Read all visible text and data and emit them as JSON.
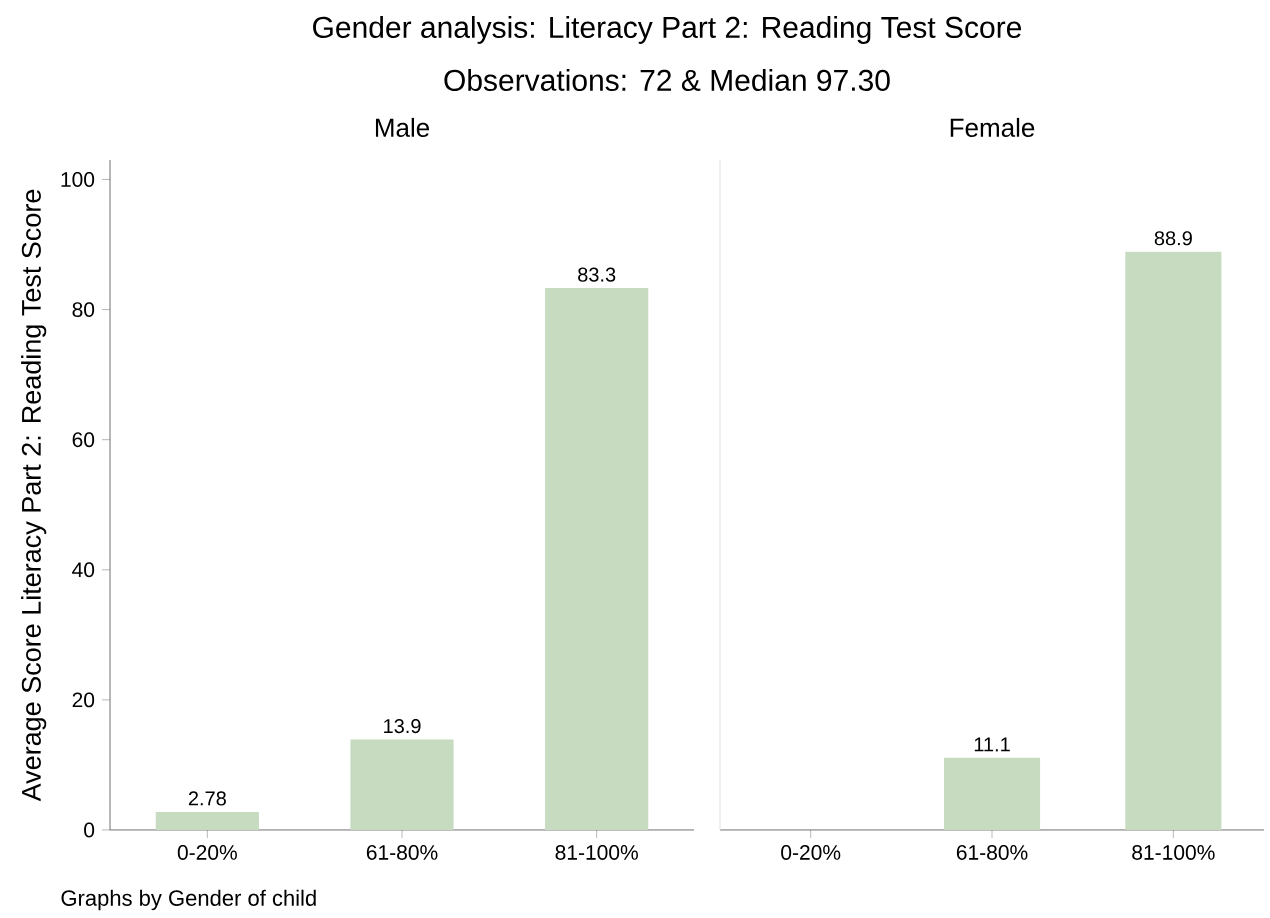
{
  "chart_data": [
    {
      "type": "bar",
      "title": "Male",
      "ylabel": "Average Score Literacy Part 2: Reading Test Score",
      "annotations": [
        "Gender analysis: Literacy Part 2: Reading Test Score",
        "Observations: 72 & Median 97.30",
        "Graphs by Gender of child"
      ],
      "categories": [
        "0-20%",
        "61-80%",
        "81-100%"
      ],
      "values": [
        2.78,
        13.9,
        83.3
      ],
      "value_labels": [
        "2.78",
        "13.9",
        "83.3"
      ],
      "color": "#c6dbc0",
      "ylim": [
        0,
        103
      ],
      "yticks": [
        0,
        20,
        40,
        60,
        80,
        100
      ],
      "grid": false
    },
    {
      "type": "bar",
      "title": "Female",
      "categories": [
        "0-20%",
        "61-80%",
        "81-100%"
      ],
      "values": [
        null,
        11.1,
        88.9
      ],
      "value_labels": [
        null,
        "11.1",
        "88.9"
      ],
      "color": "#c6dbc0",
      "ylim": [
        0,
        103
      ],
      "grid": false,
      "tick_labels": "x"
    }
  ]
}
